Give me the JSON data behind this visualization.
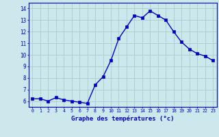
{
  "hours": [
    0,
    1,
    2,
    3,
    4,
    5,
    6,
    7,
    8,
    9,
    10,
    11,
    12,
    13,
    14,
    15,
    16,
    17,
    18,
    19,
    20,
    21,
    22,
    23
  ],
  "temperatures": [
    6.2,
    6.2,
    6.0,
    6.3,
    6.1,
    6.0,
    5.9,
    5.8,
    7.4,
    8.1,
    9.5,
    11.4,
    12.4,
    13.4,
    13.2,
    13.8,
    13.4,
    13.0,
    12.0,
    11.1,
    10.5,
    10.1,
    9.9,
    9.5
  ],
  "line_color": "#0000cc",
  "marker_color": "#0000cc",
  "bg_color": "#cce8ec",
  "grid_color": "#aacccc",
  "xlabel": "Graphe des températures (°c)",
  "xlabel_color": "#0000cc",
  "ylim": [
    5.5,
    14.5
  ],
  "yticks": [
    6,
    7,
    8,
    9,
    10,
    11,
    12,
    13,
    14
  ],
  "xlim": [
    -0.5,
    23.5
  ],
  "xticks": [
    0,
    1,
    2,
    3,
    4,
    5,
    6,
    7,
    8,
    9,
    10,
    11,
    12,
    13,
    14,
    15,
    16,
    17,
    18,
    19,
    20,
    21,
    22,
    23
  ],
  "tick_label_color": "#0000cc",
  "axis_color": "#0000cc",
  "line_width": 1.0,
  "marker_size": 2.5
}
